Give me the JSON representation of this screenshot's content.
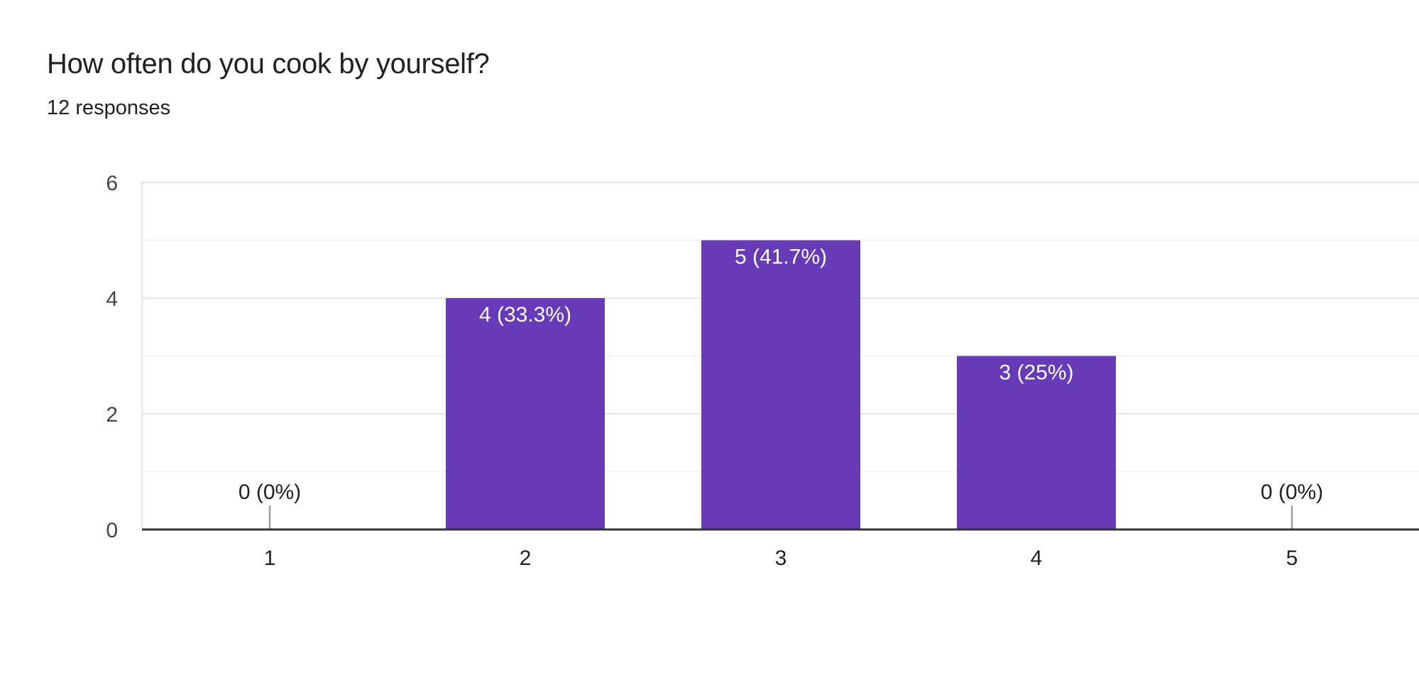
{
  "header": {
    "title": "How often do you cook by yourself?",
    "responses": "12 responses"
  },
  "colors": {
    "bar": "#673AB7",
    "gridline_major": "#e8e8e8",
    "gridline_minor": "#f3f3f3",
    "axis": "#333333",
    "inside_label": "#ffffff",
    "outside_label": "#222222",
    "zero_marker": "#9e9e9e"
  },
  "chart_data": {
    "type": "bar",
    "title": "How often do you cook by yourself?",
    "subtitle": "12 responses",
    "xlabel": "",
    "ylabel": "",
    "categories": [
      "1",
      "2",
      "3",
      "4",
      "5"
    ],
    "values": [
      0,
      4,
      5,
      3,
      0
    ],
    "data_labels": [
      "0 (0%)",
      "4 (33.3%)",
      "5 (41.7%)",
      "3 (25%)",
      "0 (0%)"
    ],
    "ylim": [
      0,
      6
    ],
    "yticks": [
      "0",
      "2",
      "4",
      "6"
    ],
    "grid": true,
    "legend": "none"
  }
}
